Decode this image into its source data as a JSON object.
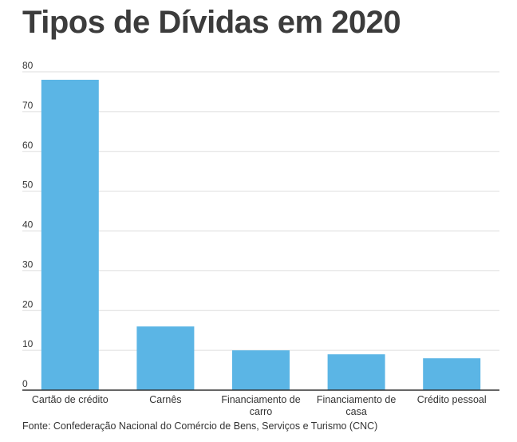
{
  "page": {
    "title": "Tipos de Dívidas em 2020",
    "source": "Fonte: Confederação Nacional do Comércio de Bens, Serviços e Turismo (CNC)"
  },
  "chart_data": {
    "type": "bar",
    "title": "Tipos de Dívidas em 2020",
    "xlabel": "",
    "ylabel": "",
    "categories": [
      [
        "Cartão de crédito"
      ],
      [
        "Carnês"
      ],
      [
        "Financiamento de",
        "carro"
      ],
      [
        "Financiamento de",
        "casa"
      ],
      [
        "Crédito pessoal"
      ]
    ],
    "values": [
      78,
      16,
      10,
      9,
      8
    ],
    "ylim": [
      0,
      80
    ],
    "yticks": [
      0,
      10,
      20,
      30,
      40,
      50,
      60,
      70,
      80
    ],
    "grid": true,
    "legend": "none",
    "colors": {
      "bar": "#5bb5e5",
      "grid": "#dddddd",
      "axis": "#333333",
      "text": "#333333"
    }
  }
}
